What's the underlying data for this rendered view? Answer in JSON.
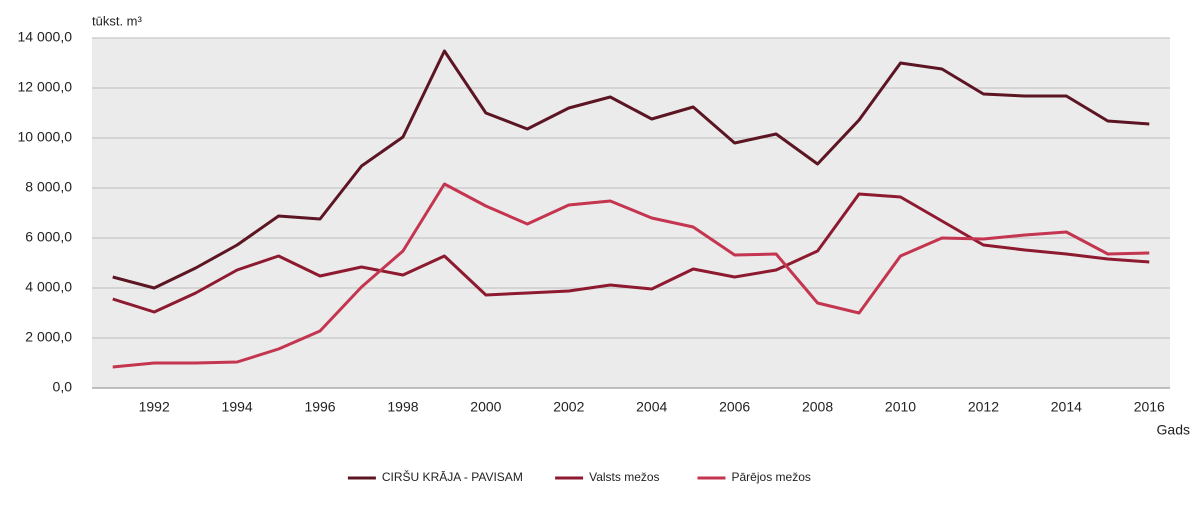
{
  "chart_data": {
    "type": "line",
    "y_label": "tūkst. m³",
    "x_label": "Gads",
    "categories": [
      null,
      "1992",
      null,
      "1994",
      null,
      "1996",
      null,
      "1998",
      null,
      "2000",
      null,
      "2002",
      null,
      "2004",
      null,
      "2006",
      null,
      "2008",
      null,
      "2010",
      null,
      "2012",
      null,
      "2014",
      null,
      "2016"
    ],
    "series": [
      {
        "name": "CIRŠU KRĀJA - PAVISAM",
        "color": "#5c1523",
        "values": [
          4440,
          4000,
          4800,
          5720,
          6880,
          6760,
          8880,
          10040,
          13480,
          11000,
          10360,
          11200,
          11640,
          10760,
          11240,
          9800,
          10160,
          8960,
          10720,
          13000,
          12760,
          11760,
          11680,
          11680,
          10680,
          10560
        ]
      },
      {
        "name": "Valsts mežos",
        "color": "#8e1a30",
        "values": [
          3560,
          3040,
          3800,
          4720,
          5280,
          4480,
          4840,
          4520,
          5280,
          3720,
          3800,
          3880,
          4120,
          3960,
          4760,
          4440,
          4720,
          5480,
          7760,
          7640,
          6680,
          5720,
          5520,
          5360,
          5160,
          5040
        ]
      },
      {
        "name": "Pārējos mežos",
        "color": "#c4354f",
        "values": [
          840,
          1000,
          1000,
          1040,
          1560,
          2280,
          4040,
          5480,
          8160,
          7280,
          6560,
          7320,
          7480,
          6800,
          6440,
          5320,
          5360,
          3400,
          3000,
          5280,
          6000,
          5960,
          6120,
          6240,
          5360,
          5400
        ]
      }
    ],
    "ylim": [
      0,
      14000
    ],
    "yticks": [
      {
        "value": 0,
        "label": "0,0"
      },
      {
        "value": 2000,
        "label": "2 000,0"
      },
      {
        "value": 4000,
        "label": "4 000,0"
      },
      {
        "value": 6000,
        "label": "6 000,0"
      },
      {
        "value": 8000,
        "label": "8 000,0"
      },
      {
        "value": 10000,
        "label": "10 000,0"
      },
      {
        "value": 12000,
        "label": "12 000,0"
      },
      {
        "value": 14000,
        "label": "14 000,0"
      }
    ],
    "grid": true,
    "legend": "bottom"
  }
}
